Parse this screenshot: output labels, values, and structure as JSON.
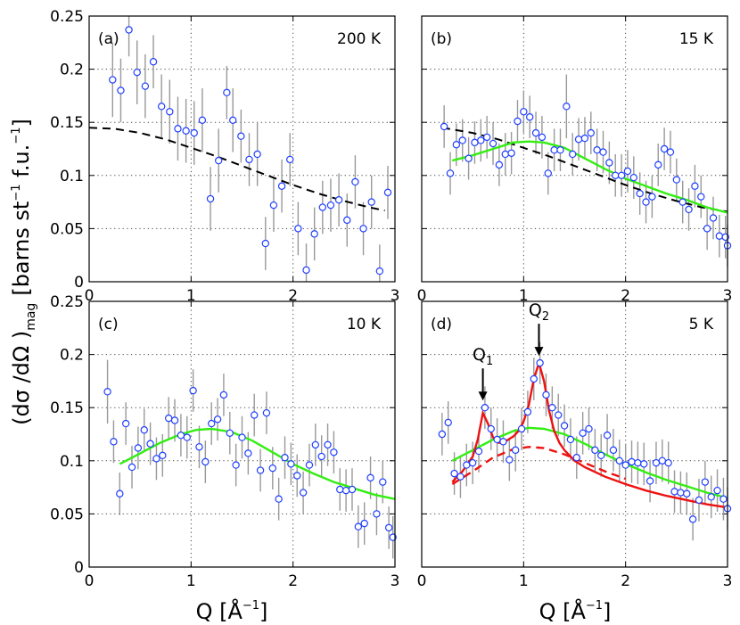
{
  "chart_data": [
    {
      "type": "scatter",
      "panel": "(a)",
      "temperature": "200 K",
      "xlim": [
        0,
        3
      ],
      "ylim": [
        0,
        0.25
      ],
      "x_ticks": [
        "0",
        "1",
        "2",
        "3"
      ],
      "y_ticks": [
        "0",
        "0.05",
        "0.1",
        "0.15",
        "0.2",
        "0.25"
      ],
      "points": [
        [
          0.23,
          0.19,
          0.035
        ],
        [
          0.31,
          0.18,
          0.03
        ],
        [
          0.39,
          0.237,
          0.025
        ],
        [
          0.47,
          0.197,
          0.03
        ],
        [
          0.55,
          0.184,
          0.03
        ],
        [
          0.63,
          0.207,
          0.025
        ],
        [
          0.71,
          0.165,
          0.03
        ],
        [
          0.79,
          0.16,
          0.03
        ],
        [
          0.87,
          0.144,
          0.03
        ],
        [
          0.95,
          0.142,
          0.03
        ],
        [
          1.03,
          0.14,
          0.03
        ],
        [
          1.11,
          0.152,
          0.03
        ],
        [
          1.19,
          0.078,
          0.03
        ],
        [
          1.27,
          0.114,
          0.03
        ],
        [
          1.35,
          0.178,
          0.025
        ],
        [
          1.41,
          0.152,
          0.03
        ],
        [
          1.49,
          0.137,
          0.025
        ],
        [
          1.57,
          0.115,
          0.025
        ],
        [
          1.65,
          0.12,
          0.03
        ],
        [
          1.73,
          0.036,
          0.025
        ],
        [
          1.81,
          0.072,
          0.025
        ],
        [
          1.89,
          0.09,
          0.025
        ],
        [
          1.97,
          0.115,
          0.025
        ],
        [
          2.05,
          0.05,
          0.025
        ],
        [
          2.13,
          0.011,
          0.025
        ],
        [
          2.21,
          0.045,
          0.025
        ],
        [
          2.29,
          0.07,
          0.025
        ],
        [
          2.37,
          0.072,
          0.025
        ],
        [
          2.45,
          0.077,
          0.025
        ],
        [
          2.53,
          0.058,
          0.025
        ],
        [
          2.61,
          0.094,
          0.025
        ],
        [
          2.69,
          0.05,
          0.025
        ],
        [
          2.77,
          0.075,
          0.025
        ],
        [
          2.85,
          0.01,
          0.025
        ],
        [
          2.93,
          0.084,
          0.025
        ]
      ],
      "lines": [
        {
          "name": "form-factor",
          "color": "#000000",
          "dashed": true,
          "x": [
            0,
            0.25,
            0.5,
            0.75,
            1,
            1.25,
            1.5,
            1.75,
            2,
            2.25,
            2.5,
            2.75,
            2.9
          ],
          "y": [
            0.145,
            0.144,
            0.14,
            0.134,
            0.126,
            0.118,
            0.109,
            0.1,
            0.091,
            0.083,
            0.076,
            0.07,
            0.067
          ]
        }
      ]
    },
    {
      "type": "scatter",
      "panel": "(b)",
      "temperature": "15 K",
      "xlim": [
        0,
        3
      ],
      "ylim": [
        0,
        0.25
      ],
      "x_ticks": [
        "0",
        "1",
        "2",
        "3"
      ],
      "y_ticks": [],
      "points": [
        [
          0.22,
          0.146,
          0.02
        ],
        [
          0.28,
          0.102,
          0.02
        ],
        [
          0.34,
          0.129,
          0.02
        ],
        [
          0.4,
          0.133,
          0.02
        ],
        [
          0.46,
          0.116,
          0.02
        ],
        [
          0.52,
          0.131,
          0.02
        ],
        [
          0.58,
          0.133,
          0.02
        ],
        [
          0.64,
          0.136,
          0.02
        ],
        [
          0.7,
          0.13,
          0.02
        ],
        [
          0.76,
          0.11,
          0.02
        ],
        [
          0.82,
          0.12,
          0.02
        ],
        [
          0.88,
          0.121,
          0.02
        ],
        [
          0.94,
          0.151,
          0.02
        ],
        [
          1.0,
          0.16,
          0.02
        ],
        [
          1.06,
          0.155,
          0.02
        ],
        [
          1.12,
          0.14,
          0.02
        ],
        [
          1.18,
          0.136,
          0.02
        ],
        [
          1.24,
          0.102,
          0.02
        ],
        [
          1.3,
          0.124,
          0.02
        ],
        [
          1.36,
          0.124,
          0.02
        ],
        [
          1.42,
          0.165,
          0.03
        ],
        [
          1.48,
          0.12,
          0.02
        ],
        [
          1.54,
          0.134,
          0.02
        ],
        [
          1.6,
          0.135,
          0.02
        ],
        [
          1.66,
          0.14,
          0.02
        ],
        [
          1.72,
          0.124,
          0.02
        ],
        [
          1.78,
          0.122,
          0.02
        ],
        [
          1.84,
          0.112,
          0.02
        ],
        [
          1.9,
          0.1,
          0.02
        ],
        [
          1.96,
          0.1,
          0.02
        ],
        [
          2.02,
          0.104,
          0.02
        ],
        [
          2.08,
          0.098,
          0.02
        ],
        [
          2.14,
          0.083,
          0.02
        ],
        [
          2.2,
          0.075,
          0.02
        ],
        [
          2.26,
          0.08,
          0.02
        ],
        [
          2.32,
          0.11,
          0.02
        ],
        [
          2.38,
          0.125,
          0.02
        ],
        [
          2.44,
          0.122,
          0.02
        ],
        [
          2.5,
          0.096,
          0.02
        ],
        [
          2.56,
          0.075,
          0.02
        ],
        [
          2.62,
          0.068,
          0.02
        ],
        [
          2.68,
          0.09,
          0.02
        ],
        [
          2.74,
          0.08,
          0.02
        ],
        [
          2.8,
          0.05,
          0.02
        ],
        [
          2.86,
          0.06,
          0.02
        ],
        [
          2.92,
          0.043,
          0.02
        ],
        [
          2.98,
          0.042,
          0.02
        ],
        [
          3.0,
          0.034,
          0.02
        ]
      ],
      "lines": [
        {
          "name": "form-factor",
          "color": "#000000",
          "dashed": true,
          "x": [
            0.2,
            0.5,
            0.75,
            1,
            1.25,
            1.5,
            1.75,
            2,
            2.25,
            2.5,
            2.75,
            3
          ],
          "y": [
            0.145,
            0.14,
            0.134,
            0.126,
            0.118,
            0.109,
            0.1,
            0.091,
            0.083,
            0.076,
            0.07,
            0.066
          ]
        },
        {
          "name": "fit-green",
          "color": "#33ee11",
          "dashed": false,
          "x": [
            0.3,
            0.5,
            0.7,
            0.9,
            1.05,
            1.2,
            1.4,
            1.6,
            1.8,
            2,
            2.2,
            2.4,
            2.6,
            2.8,
            3
          ],
          "y": [
            0.114,
            0.119,
            0.125,
            0.131,
            0.132,
            0.131,
            0.126,
            0.116,
            0.106,
            0.097,
            0.09,
            0.083,
            0.077,
            0.07,
            0.065
          ]
        }
      ]
    },
    {
      "type": "scatter",
      "panel": "(c)",
      "temperature": "10 K",
      "xlim": [
        0,
        3
      ],
      "ylim": [
        0,
        0.25
      ],
      "x_ticks": [
        "0",
        "1",
        "2",
        "3"
      ],
      "y_ticks": [
        "0",
        "0.05",
        "0.1",
        "0.15",
        "0.2",
        "0.25"
      ],
      "points": [
        [
          0.18,
          0.165,
          0.03
        ],
        [
          0.24,
          0.118,
          0.02
        ],
        [
          0.3,
          0.069,
          0.02
        ],
        [
          0.36,
          0.135,
          0.02
        ],
        [
          0.42,
          0.094,
          0.02
        ],
        [
          0.48,
          0.112,
          0.02
        ],
        [
          0.54,
          0.129,
          0.02
        ],
        [
          0.6,
          0.116,
          0.02
        ],
        [
          0.66,
          0.102,
          0.02
        ],
        [
          0.72,
          0.105,
          0.02
        ],
        [
          0.78,
          0.14,
          0.02
        ],
        [
          0.84,
          0.138,
          0.02
        ],
        [
          0.9,
          0.124,
          0.02
        ],
        [
          0.96,
          0.122,
          0.02
        ],
        [
          1.02,
          0.166,
          0.02
        ],
        [
          1.08,
          0.113,
          0.02
        ],
        [
          1.14,
          0.099,
          0.02
        ],
        [
          1.2,
          0.135,
          0.02
        ],
        [
          1.26,
          0.139,
          0.02
        ],
        [
          1.32,
          0.162,
          0.02
        ],
        [
          1.38,
          0.126,
          0.02
        ],
        [
          1.44,
          0.096,
          0.02
        ],
        [
          1.5,
          0.122,
          0.02
        ],
        [
          1.56,
          0.107,
          0.02
        ],
        [
          1.62,
          0.143,
          0.02
        ],
        [
          1.68,
          0.091,
          0.02
        ],
        [
          1.74,
          0.145,
          0.02
        ],
        [
          1.8,
          0.093,
          0.02
        ],
        [
          1.86,
          0.064,
          0.02
        ],
        [
          1.92,
          0.103,
          0.02
        ],
        [
          1.98,
          0.097,
          0.02
        ],
        [
          2.04,
          0.086,
          0.02
        ],
        [
          2.1,
          0.07,
          0.02
        ],
        [
          2.16,
          0.096,
          0.02
        ],
        [
          2.22,
          0.115,
          0.02
        ],
        [
          2.28,
          0.104,
          0.02
        ],
        [
          2.34,
          0.115,
          0.02
        ],
        [
          2.4,
          0.108,
          0.02
        ],
        [
          2.46,
          0.073,
          0.02
        ],
        [
          2.52,
          0.072,
          0.02
        ],
        [
          2.58,
          0.073,
          0.02
        ],
        [
          2.64,
          0.038,
          0.02
        ],
        [
          2.7,
          0.041,
          0.02
        ],
        [
          2.76,
          0.084,
          0.02
        ],
        [
          2.82,
          0.05,
          0.02
        ],
        [
          2.88,
          0.08,
          0.02
        ],
        [
          2.94,
          0.037,
          0.02
        ],
        [
          2.98,
          0.028,
          0.02
        ]
      ],
      "lines": [
        {
          "name": "fit-green",
          "color": "#33ee11",
          "dashed": false,
          "x": [
            0.3,
            0.5,
            0.7,
            0.9,
            1.05,
            1.2,
            1.4,
            1.6,
            1.8,
            2,
            2.2,
            2.4,
            2.6,
            2.8,
            3
          ],
          "y": [
            0.097,
            0.107,
            0.117,
            0.125,
            0.129,
            0.13,
            0.127,
            0.119,
            0.108,
            0.097,
            0.088,
            0.08,
            0.074,
            0.068,
            0.064
          ]
        }
      ]
    },
    {
      "type": "scatter",
      "panel": "(d)",
      "temperature": "5 K",
      "xlim": [
        0,
        3
      ],
      "ylim": [
        0,
        0.25
      ],
      "x_ticks": [
        "0",
        "1",
        "2",
        "3"
      ],
      "y_ticks": [],
      "annotations": [
        {
          "label": "Q",
          "subscript": "1",
          "x": 0.6,
          "y": 0.15
        },
        {
          "label": "Q",
          "subscript": "2",
          "x": 1.15,
          "y": 0.192
        }
      ],
      "points": [
        [
          0.2,
          0.125,
          0.02
        ],
        [
          0.26,
          0.136,
          0.02
        ],
        [
          0.32,
          0.088,
          0.02
        ],
        [
          0.38,
          0.085,
          0.02
        ],
        [
          0.44,
          0.096,
          0.02
        ],
        [
          0.5,
          0.098,
          0.02
        ],
        [
          0.56,
          0.109,
          0.02
        ],
        [
          0.62,
          0.15,
          0.02
        ],
        [
          0.68,
          0.13,
          0.02
        ],
        [
          0.74,
          0.12,
          0.02
        ],
        [
          0.8,
          0.118,
          0.02
        ],
        [
          0.86,
          0.101,
          0.02
        ],
        [
          0.92,
          0.11,
          0.02
        ],
        [
          0.98,
          0.13,
          0.02
        ],
        [
          1.04,
          0.146,
          0.02
        ],
        [
          1.1,
          0.177,
          0.02
        ],
        [
          1.16,
          0.192,
          0.02
        ],
        [
          1.22,
          0.162,
          0.02
        ],
        [
          1.28,
          0.15,
          0.02
        ],
        [
          1.34,
          0.143,
          0.02
        ],
        [
          1.4,
          0.133,
          0.02
        ],
        [
          1.46,
          0.12,
          0.02
        ],
        [
          1.52,
          0.103,
          0.02
        ],
        [
          1.58,
          0.126,
          0.02
        ],
        [
          1.64,
          0.13,
          0.02
        ],
        [
          1.7,
          0.11,
          0.02
        ],
        [
          1.76,
          0.105,
          0.02
        ],
        [
          1.82,
          0.124,
          0.02
        ],
        [
          1.88,
          0.11,
          0.02
        ],
        [
          1.94,
          0.1,
          0.02
        ],
        [
          2.0,
          0.096,
          0.02
        ],
        [
          2.06,
          0.099,
          0.02
        ],
        [
          2.12,
          0.098,
          0.02
        ],
        [
          2.18,
          0.097,
          0.02
        ],
        [
          2.24,
          0.081,
          0.02
        ],
        [
          2.3,
          0.098,
          0.02
        ],
        [
          2.36,
          0.1,
          0.02
        ],
        [
          2.42,
          0.098,
          0.02
        ],
        [
          2.48,
          0.071,
          0.02
        ],
        [
          2.54,
          0.07,
          0.02
        ],
        [
          2.6,
          0.069,
          0.02
        ],
        [
          2.66,
          0.045,
          0.02
        ],
        [
          2.72,
          0.063,
          0.02
        ],
        [
          2.78,
          0.08,
          0.02
        ],
        [
          2.84,
          0.066,
          0.02
        ],
        [
          2.9,
          0.072,
          0.02
        ],
        [
          2.96,
          0.064,
          0.02
        ],
        [
          3.0,
          0.055,
          0.02
        ]
      ],
      "lines": [
        {
          "name": "fit-green",
          "color": "#33ee11",
          "dashed": false,
          "x": [
            0.3,
            0.5,
            0.7,
            0.9,
            1.05,
            1.2,
            1.4,
            1.6,
            1.8,
            2,
            2.2,
            2.4,
            2.6,
            2.8,
            3
          ],
          "y": [
            0.1,
            0.11,
            0.12,
            0.128,
            0.131,
            0.13,
            0.125,
            0.116,
            0.106,
            0.097,
            0.089,
            0.082,
            0.076,
            0.07,
            0.065
          ]
        },
        {
          "name": "fit-red-dashed",
          "color": "#ee1111",
          "dashed": true,
          "x": [
            0.3,
            0.5,
            0.7,
            0.9,
            1.05,
            1.2,
            1.4,
            1.6,
            1.8,
            2
          ],
          "y": [
            0.078,
            0.09,
            0.103,
            0.111,
            0.113,
            0.112,
            0.106,
            0.098,
            0.09,
            0.083
          ]
        },
        {
          "name": "fit-red",
          "color": "#ee1111",
          "dashed": false,
          "x": [
            0.3,
            0.4,
            0.5,
            0.55,
            0.6,
            0.65,
            0.7,
            0.75,
            0.8,
            0.85,
            0.9,
            0.95,
            1.0,
            1.05,
            1.1,
            1.15,
            1.2,
            1.25,
            1.3,
            1.35,
            1.4,
            1.5,
            1.6,
            1.8,
            2,
            2.2,
            2.4,
            2.6,
            2.8,
            3
          ],
          "y": [
            0.08,
            0.09,
            0.104,
            0.12,
            0.145,
            0.135,
            0.122,
            0.117,
            0.117,
            0.12,
            0.123,
            0.128,
            0.137,
            0.152,
            0.177,
            0.192,
            0.175,
            0.147,
            0.128,
            0.117,
            0.11,
            0.1,
            0.094,
            0.085,
            0.078,
            0.072,
            0.067,
            0.063,
            0.059,
            0.056
          ]
        }
      ]
    }
  ],
  "axes": {
    "xlabel_left": "Q [Å",
    "xlabel_sup": "−1",
    "xlabel_right": "]",
    "ylabel_prefix": "(dσ /dΩ )",
    "ylabel_sub": "mag",
    "ylabel_units": "[barns st",
    "ylabel_sup1": "−1",
    "ylabel_mid": " f.u.",
    "ylabel_sup2": "−1",
    "ylabel_end": "]"
  },
  "style": {
    "marker_color": "#1f3fff",
    "errorbar_color": "#999999",
    "grid_color": "#444444"
  }
}
